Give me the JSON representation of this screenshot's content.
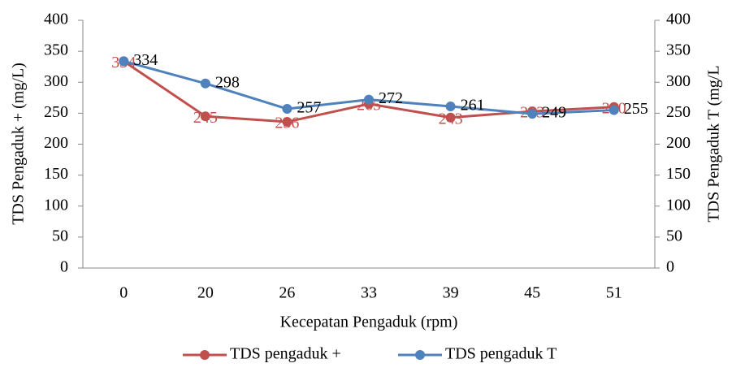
{
  "chart_data": {
    "type": "line",
    "categories": [
      "0",
      "20",
      "26",
      "33",
      "39",
      "45",
      "51"
    ],
    "series": [
      {
        "name": "TDS pengaduk +",
        "color": "#c0504d",
        "values": [
          334,
          245,
          236,
          265,
          243,
          253,
          260
        ]
      },
      {
        "name": "TDS pengaduk T",
        "color": "#4f81bd",
        "axis": "y2",
        "values": [
          334,
          298,
          257,
          272,
          261,
          249,
          255
        ]
      }
    ],
    "x_label": "Kecepatan Pengaduk (rpm)",
    "y_label": "TDS Pengaduk  +  (mg/L)",
    "y2_label": "TDS Pengaduk  T  (mg/L",
    "ylim": [
      0,
      400
    ],
    "yticks": [
      0,
      50,
      100,
      150,
      200,
      250,
      300,
      350,
      400
    ],
    "y2lim": [
      0,
      400
    ],
    "y2ticks": [
      0,
      50,
      100,
      150,
      200,
      250,
      300,
      350,
      400
    ],
    "grid": false,
    "legend": "bottom"
  }
}
